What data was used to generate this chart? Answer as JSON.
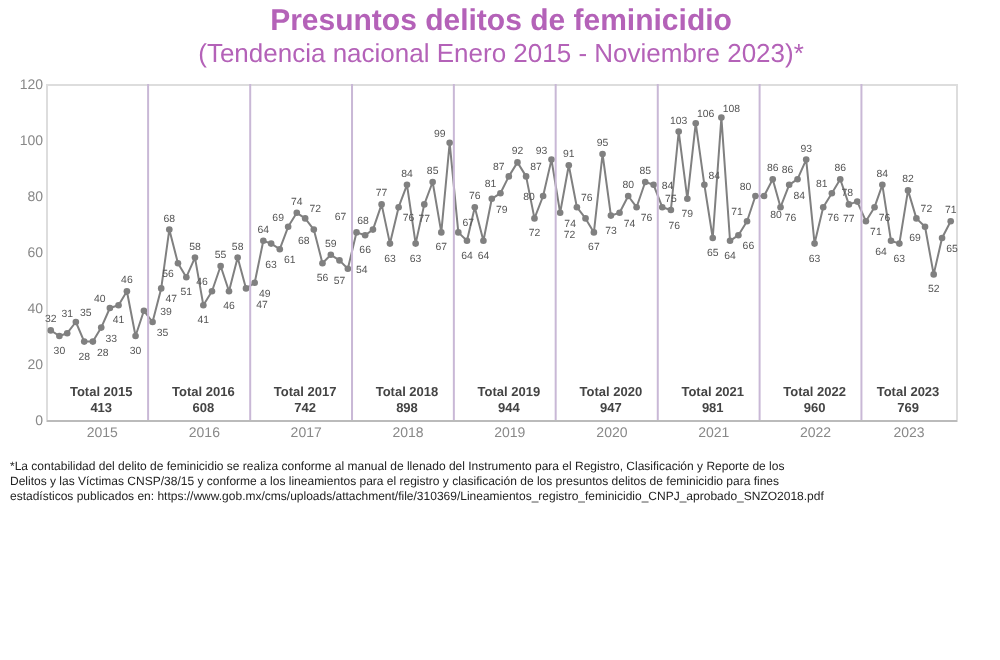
{
  "chart_data": {
    "type": "line",
    "title": "Presuntos delitos de feminicidio",
    "subtitle": "(Tendencia nacional Enero 2015 - Noviembre 2023)*",
    "x": [
      "2015-01",
      "2015-02",
      "2015-03",
      "2015-04",
      "2015-05",
      "2015-06",
      "2015-07",
      "2015-08",
      "2015-09",
      "2015-10",
      "2015-11",
      "2015-12",
      "2016-01",
      "2016-02",
      "2016-03",
      "2016-04",
      "2016-05",
      "2016-06",
      "2016-07",
      "2016-08",
      "2016-09",
      "2016-10",
      "2016-11",
      "2016-12",
      "2017-01",
      "2017-02",
      "2017-03",
      "2017-04",
      "2017-05",
      "2017-06",
      "2017-07",
      "2017-08",
      "2017-09",
      "2017-10",
      "2017-11",
      "2017-12",
      "2018-01",
      "2018-02",
      "2018-03",
      "2018-04",
      "2018-05",
      "2018-06",
      "2018-07",
      "2018-08",
      "2018-09",
      "2018-10",
      "2018-11",
      "2018-12",
      "2019-01",
      "2019-02",
      "2019-03",
      "2019-04",
      "2019-05",
      "2019-06",
      "2019-07",
      "2019-08",
      "2019-09",
      "2019-10",
      "2019-11",
      "2019-12",
      "2020-01",
      "2020-02",
      "2020-03",
      "2020-04",
      "2020-05",
      "2020-06",
      "2020-07",
      "2020-08",
      "2020-09",
      "2020-10",
      "2020-11",
      "2020-12",
      "2021-01",
      "2021-02",
      "2021-03",
      "2021-04",
      "2021-05",
      "2021-06",
      "2021-07",
      "2021-08",
      "2021-09",
      "2021-10",
      "2021-11",
      "2021-12",
      "2022-01",
      "2022-02",
      "2022-03",
      "2022-04",
      "2022-05",
      "2022-06",
      "2022-07",
      "2022-08",
      "2022-09",
      "2022-10",
      "2022-11",
      "2022-12",
      "2023-01",
      "2023-02",
      "2023-03",
      "2023-04",
      "2023-05",
      "2023-06",
      "2023-07",
      "2023-08",
      "2023-09",
      "2023-10",
      "2023-11"
    ],
    "series": [
      {
        "color": "#808080",
        "values": [
          32,
          30,
          31,
          35,
          28,
          28,
          33,
          40,
          41,
          46,
          30,
          39,
          35,
          47,
          68,
          56,
          51,
          58,
          41,
          46,
          55,
          46,
          58,
          47,
          49,
          64,
          63,
          61,
          69,
          74,
          72,
          68,
          56,
          59,
          57,
          54,
          67,
          66,
          68,
          77,
          63,
          76,
          84,
          63,
          77,
          85,
          67,
          99,
          67,
          64,
          76,
          64,
          79,
          81,
          87,
          92,
          87,
          72,
          80,
          93,
          74,
          91,
          76,
          72,
          67,
          95,
          73,
          74,
          80,
          76,
          85,
          84,
          76,
          75,
          103,
          79,
          106,
          84,
          65,
          108,
          64,
          66,
          71,
          80,
          80,
          86,
          76,
          84,
          86,
          93,
          63,
          76,
          81,
          86,
          77,
          78,
          71,
          76,
          84,
          64,
          63,
          82,
          72,
          69,
          52,
          65,
          71
        ]
      }
    ],
    "data_labels": true,
    "marker": "circle",
    "line_style": "solid",
    "grid": false,
    "legend": false,
    "xlim": [
      "2014-12-15",
      "2023-11-20"
    ],
    "xticks": [
      {
        "value": "2015-07",
        "label": "2015"
      },
      {
        "value": "2016-07",
        "label": "2016"
      },
      {
        "value": "2017-07",
        "label": "2017"
      },
      {
        "value": "2018-07",
        "label": "2018"
      },
      {
        "value": "2019-07",
        "label": "2019"
      },
      {
        "value": "2020-07",
        "label": "2020"
      },
      {
        "value": "2021-07",
        "label": "2021"
      },
      {
        "value": "2022-07",
        "label": "2022"
      },
      {
        "value": "2023-06",
        "label": "2023"
      }
    ],
    "ylim": [
      0,
      120
    ],
    "yticks": [
      0,
      20,
      40,
      60,
      80,
      100,
      120
    ],
    "ref_lines": [
      {
        "axis": "x",
        "value": "2015-12-16",
        "color": "#c9b8d6"
      },
      {
        "axis": "x",
        "value": "2016-12-16",
        "color": "#c9b8d6"
      },
      {
        "axis": "x",
        "value": "2017-12-16",
        "color": "#c9b8d6"
      },
      {
        "axis": "x",
        "value": "2018-12-16",
        "color": "#c9b8d6"
      },
      {
        "axis": "x",
        "value": "2019-12-16",
        "color": "#c9b8d6"
      },
      {
        "axis": "x",
        "value": "2020-12-16",
        "color": "#c9b8d6"
      },
      {
        "axis": "x",
        "value": "2021-12-16",
        "color": "#c9b8d6"
      },
      {
        "axis": "x",
        "value": "2022-12-16",
        "color": "#c9b8d6"
      }
    ],
    "annotations": [
      "Total 2015\n413",
      "Total 2016\n608",
      "Total 2017\n742",
      "Total 2018\n898",
      "Total 2019\n944",
      "Total 2020\n947",
      "Total 2021\n981",
      "Total 2022\n960",
      "Total 2023\n769",
      "*La contabilidad del delito de feminicidio se realiza conforme al manual de llenado del Instrumento para el Registro, Clasificación y Reporte de los Delitos y las Víctimas CNSP/38/15 y conforme a los lineamientos para el registro y clasificación de los presuntos delitos de feminicidio para fines estadísticos publicados en: https://www.gob.mx/cms/uploads/attachment/file/310369/Lineamientos_registro_feminicidio_CNPJ_aprobado_SNZO2018.pdf"
    ]
  }
}
